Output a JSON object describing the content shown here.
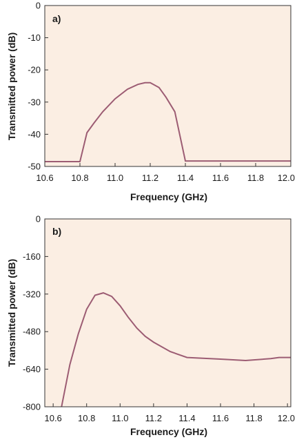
{
  "colors": {
    "plot_bg": "#fbeee3",
    "axis": "#333333",
    "series": "#9c5c73"
  },
  "chart_data": [
    {
      "type": "line",
      "panel_label": "a)",
      "xlabel": "Frequency (GHz)",
      "ylabel": "Transmitted power (dB)",
      "xlim": [
        10.6,
        12.0
      ],
      "ylim": [
        -50,
        0
      ],
      "xticks": [
        "10.6",
        "10.8",
        "11.0",
        "11.2",
        "11.4",
        "11.6",
        "11.8",
        "12.0"
      ],
      "yticks": [
        "0",
        "-10",
        "-20",
        "-30",
        "-40",
        "-50"
      ],
      "series": [
        {
          "x": [
            10.6,
            10.8,
            10.84,
            10.88,
            10.93,
            11.0,
            11.07,
            11.13,
            11.17,
            11.2,
            11.25,
            11.29,
            11.34,
            11.4,
            11.6,
            11.8,
            12.0
          ],
          "y": [
            -48.5,
            -48.5,
            -39.5,
            -36.5,
            -33.0,
            -29.0,
            -26.0,
            -24.5,
            -24.0,
            -24.0,
            -25.5,
            -28.5,
            -33.0,
            -48.3,
            -48.3,
            -48.3,
            -48.3
          ]
        }
      ]
    },
    {
      "type": "line",
      "panel_label": "b)",
      "xlabel": "Frequency (GHz)",
      "ylabel": "Transmitted power (dB)",
      "xlim": [
        10.55,
        12.02
      ],
      "ylim": [
        -800,
        0
      ],
      "xticks": [
        "10.6",
        "10.8",
        "11.0",
        "11.2",
        "11.4",
        "11.6",
        "11.8",
        "12.0"
      ],
      "yticks": [
        "0",
        "-160",
        "-320",
        "-480",
        "-640",
        "-800"
      ],
      "series": [
        {
          "x": [
            10.65,
            10.7,
            10.75,
            10.8,
            10.85,
            10.9,
            10.95,
            11.0,
            11.05,
            11.1,
            11.15,
            11.2,
            11.3,
            11.4,
            11.6,
            11.75,
            11.9,
            11.95,
            12.02
          ],
          "y": [
            -800,
            -620,
            -490,
            -385,
            -325,
            -315,
            -330,
            -370,
            -420,
            -465,
            -500,
            -525,
            -565,
            -590,
            -597,
            -603,
            -595,
            -590,
            -590
          ]
        }
      ]
    }
  ]
}
